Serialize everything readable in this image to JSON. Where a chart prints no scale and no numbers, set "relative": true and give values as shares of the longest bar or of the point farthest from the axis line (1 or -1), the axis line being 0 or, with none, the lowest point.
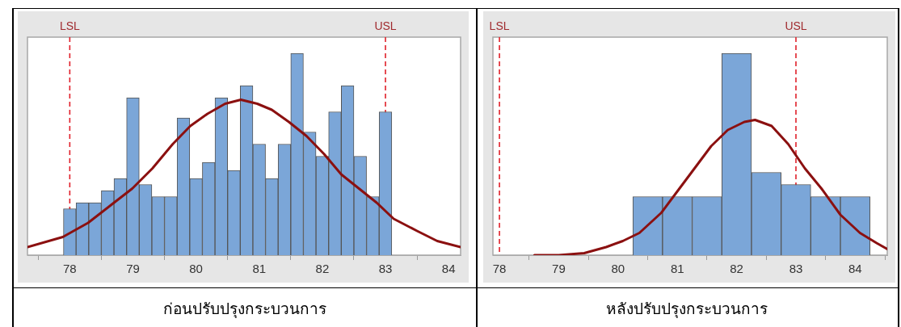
{
  "chart_data": [
    {
      "type": "histogram",
      "relative": true,
      "bins": [
        77.9,
        78.1,
        78.3,
        78.5,
        78.7,
        78.9,
        79.1,
        79.3,
        79.5,
        79.7,
        79.9,
        80.1,
        80.3,
        80.5,
        80.7,
        80.9,
        81.1,
        81.3,
        81.5,
        81.7,
        81.9,
        82.1,
        82.3,
        82.5,
        82.7,
        82.9,
        83.1
      ],
      "values": [
        0.23,
        0.26,
        0.26,
        0.32,
        0.38,
        0.78,
        0.35,
        0.29,
        0.29,
        0.68,
        0.38,
        0.46,
        0.78,
        0.42,
        0.84,
        0.55,
        0.38,
        0.55,
        1,
        0.61,
        0.49,
        0.71,
        0.84,
        0.49,
        0.29,
        0.71
      ],
      "color": "#7ba6d8",
      "series": [
        {
          "type": "line",
          "color": "#8b1010",
          "x": [
            77.33,
            77.89,
            78.29,
            78.66,
            78.99,
            79.31,
            79.63,
            79.91,
            80.18,
            80.46,
            80.71,
            80.97,
            81.2,
            81.47,
            81.75,
            82.03,
            82.3,
            82.58,
            82.86,
            83.13,
            83.5,
            83.82,
            84.19
          ],
          "values": [
            0.04,
            0.09,
            0.16,
            0.25,
            0.33,
            0.43,
            0.55,
            0.64,
            0.7,
            0.75,
            0.77,
            0.75,
            0.72,
            0.66,
            0.59,
            0.5,
            0.4,
            0.33,
            0.26,
            0.18,
            0.12,
            0.07,
            0.04
          ]
        }
      ],
      "xlim": [
        77.33,
        84.19
      ],
      "xticks": [
        78,
        79,
        80,
        81,
        82,
        83,
        84
      ],
      "ref_lines": [
        {
          "axis": "x",
          "value": 78,
          "label": "LSL",
          "color": "#e0202a",
          "line_style": "dashed"
        },
        {
          "axis": "x",
          "value": 83,
          "label": "USL",
          "color": "#e0202a",
          "line_style": "dashed"
        }
      ],
      "annotations": [
        "ก่อนปรับปรุงกระบวนการ"
      ]
    },
    {
      "type": "histogram",
      "relative": true,
      "bins": [
        80.25,
        80.75,
        81.25,
        81.75,
        82.25,
        82.75,
        83.25,
        83.75,
        84.25
      ],
      "values": [
        0.29,
        0.29,
        0.29,
        1,
        0.41,
        0.35,
        0.29,
        0.29
      ],
      "color": "#7ba6d8",
      "series": [
        {
          "type": "line",
          "color": "#8b1010",
          "x": [
            78.59,
            79.0,
            79.43,
            79.8,
            80.08,
            80.36,
            80.73,
            81.01,
            81.29,
            81.57,
            81.85,
            82.13,
            82.31,
            82.59,
            82.87,
            83.15,
            83.43,
            83.75,
            84.08,
            84.36,
            84.54
          ],
          "values": [
            0,
            0,
            0.01,
            0.04,
            0.07,
            0.11,
            0.21,
            0.32,
            0.43,
            0.54,
            0.62,
            0.66,
            0.67,
            0.64,
            0.55,
            0.43,
            0.33,
            0.2,
            0.11,
            0.06,
            0.03
          ]
        }
      ],
      "xlim": [
        77.89,
        84.54
      ],
      "xticks": [
        78,
        79,
        80,
        81,
        82,
        83,
        84
      ],
      "ref_lines": [
        {
          "axis": "x",
          "value": 78,
          "label": "LSL",
          "color": "#e0202a",
          "line_style": "dashed"
        },
        {
          "axis": "x",
          "value": 83,
          "label": "USL",
          "color": "#e0202a",
          "line_style": "dashed"
        }
      ],
      "annotations": [
        "หลังปรับปรุงกระบวนการ"
      ]
    }
  ]
}
